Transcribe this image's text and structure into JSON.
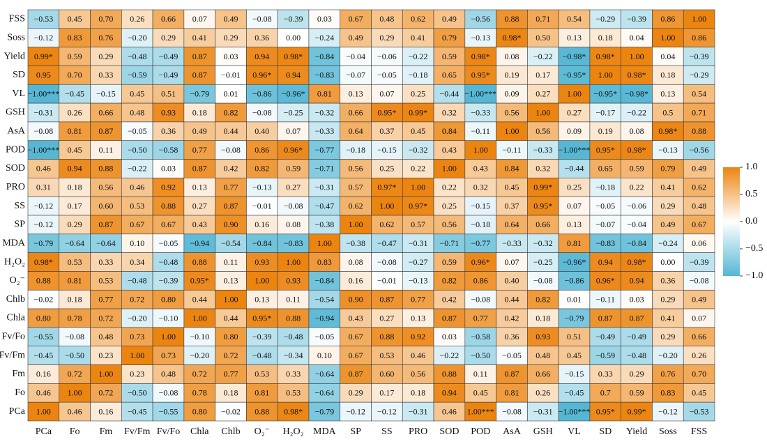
{
  "chart_data": {
    "type": "heatmap",
    "x_categories": [
      "PCa",
      "Fo",
      "Fm",
      "Fv/Fm",
      "Fv/Fo",
      "Chla",
      "Chlb",
      "O₂⁻",
      "H₂O₂",
      "MDA",
      "SP",
      "SS",
      "PRO",
      "SOD",
      "POD",
      "AsA",
      "GSH",
      "VL",
      "SD",
      "Yield",
      "Soss",
      "FSS"
    ],
    "y_categories": [
      "FSS",
      "Soss",
      "Yield",
      "SD",
      "VL",
      "GSH",
      "AsA",
      "POD",
      "SOD",
      "PRO",
      "SS",
      "SP",
      "MDA",
      "H₂O₂",
      "O₂⁻",
      "Chlb",
      "Chla",
      "Fv/Fo",
      "Fv/Fm",
      "Fm",
      "Fo",
      "PCa"
    ],
    "values": [
      [
        -0.53,
        0.45,
        0.7,
        0.26,
        0.66,
        0.07,
        0.49,
        -0.08,
        -0.39,
        0.03,
        0.67,
        0.48,
        0.62,
        0.49,
        -0.56,
        0.88,
        0.71,
        0.54,
        -0.29,
        -0.39,
        0.86,
        1.0
      ],
      [
        -0.12,
        0.83,
        0.76,
        -0.2,
        0.29,
        0.41,
        0.29,
        0.36,
        0.0,
        -0.24,
        0.49,
        0.29,
        0.41,
        0.79,
        -0.13,
        0.98,
        0.5,
        0.13,
        0.18,
        0.04,
        1.0,
        0.86
      ],
      [
        0.99,
        0.59,
        0.29,
        -0.48,
        -0.49,
        0.87,
        0.03,
        0.94,
        0.98,
        -0.84,
        -0.04,
        -0.06,
        -0.22,
        0.59,
        0.98,
        0.08,
        -0.22,
        -0.98,
        0.98,
        1.0,
        0.04,
        -0.39
      ],
      [
        0.95,
        0.7,
        0.33,
        -0.59,
        -0.49,
        0.87,
        -0.01,
        0.96,
        0.94,
        -0.83,
        -0.07,
        -0.05,
        -0.18,
        0.65,
        0.95,
        0.19,
        0.17,
        -0.95,
        1.0,
        0.98,
        0.18,
        -0.29
      ],
      [
        -1.0,
        -0.45,
        -0.15,
        0.45,
        0.51,
        -0.79,
        0.01,
        -0.86,
        -0.96,
        0.81,
        0.13,
        0.07,
        0.25,
        -0.44,
        -1.0,
        0.09,
        0.27,
        1.0,
        -0.95,
        -0.98,
        0.13,
        0.54
      ],
      [
        -0.31,
        0.26,
        0.66,
        0.48,
        0.93,
        0.18,
        0.82,
        -0.08,
        -0.25,
        -0.32,
        0.66,
        0.95,
        0.99,
        0.32,
        -0.33,
        0.56,
        1.0,
        0.27,
        -0.17,
        -0.22,
        0.5,
        0.71
      ],
      [
        -0.08,
        0.81,
        0.87,
        -0.05,
        0.36,
        0.49,
        0.44,
        0.4,
        0.07,
        -0.33,
        0.64,
        0.37,
        0.45,
        0.84,
        -0.11,
        1.0,
        0.56,
        0.09,
        0.19,
        0.08,
        0.98,
        0.88
      ],
      [
        -1.0,
        0.45,
        0.11,
        -0.5,
        -0.58,
        0.77,
        -0.08,
        0.86,
        0.96,
        -0.77,
        -0.18,
        -0.15,
        -0.32,
        0.43,
        1.0,
        -0.11,
        -0.33,
        -1.0,
        0.95,
        0.98,
        -0.13,
        -0.56
      ],
      [
        0.46,
        0.94,
        0.88,
        -0.22,
        0.03,
        0.87,
        0.42,
        0.82,
        0.59,
        -0.71,
        0.56,
        0.25,
        0.22,
        1.0,
        0.43,
        0.84,
        0.32,
        -0.44,
        0.65,
        0.59,
        0.79,
        0.49
      ],
      [
        0.31,
        0.18,
        0.56,
        0.46,
        0.92,
        0.13,
        0.77,
        -0.13,
        0.27,
        -0.31,
        0.57,
        0.97,
        1.0,
        0.22,
        0.32,
        0.45,
        0.99,
        0.25,
        -0.18,
        0.22,
        0.41,
        0.62
      ],
      [
        -0.12,
        0.17,
        0.6,
        0.53,
        0.88,
        0.27,
        0.87,
        -0.01,
        -0.08,
        -0.47,
        0.62,
        1.0,
        0.97,
        0.25,
        -0.15,
        0.37,
        0.95,
        0.07,
        -0.05,
        -0.06,
        0.29,
        0.48
      ],
      [
        -0.12,
        0.29,
        0.87,
        0.67,
        0.67,
        0.43,
        0.9,
        0.16,
        0.08,
        -0.38,
        1.0,
        0.62,
        0.57,
        0.56,
        -0.18,
        0.64,
        0.66,
        0.13,
        -0.07,
        -0.04,
        0.49,
        0.67
      ],
      [
        -0.79,
        -0.64,
        -0.64,
        0.1,
        -0.05,
        -0.94,
        -0.54,
        -0.84,
        -0.83,
        1.0,
        -0.38,
        -0.47,
        -0.31,
        -0.71,
        -0.77,
        -0.33,
        -0.32,
        0.81,
        -0.83,
        -0.84,
        -0.24,
        0.06
      ],
      [
        0.98,
        0.53,
        0.33,
        0.34,
        -0.48,
        0.88,
        0.11,
        0.93,
        1.0,
        0.83,
        0.08,
        -0.08,
        -0.27,
        0.59,
        0.96,
        0.07,
        -0.25,
        -0.96,
        0.94,
        0.98,
        0.0,
        -0.39
      ],
      [
        0.88,
        0.81,
        0.53,
        -0.48,
        -0.39,
        0.95,
        0.13,
        1.0,
        0.93,
        -0.84,
        0.16,
        -0.01,
        -0.13,
        0.82,
        0.86,
        0.4,
        -0.08,
        -0.86,
        0.96,
        0.94,
        0.36,
        -0.08
      ],
      [
        -0.02,
        0.18,
        0.77,
        0.72,
        0.8,
        0.44,
        1.0,
        0.13,
        0.11,
        -0.54,
        0.9,
        0.87,
        0.77,
        0.42,
        -0.08,
        0.44,
        0.82,
        0.01,
        -0.11,
        0.03,
        0.29,
        0.49
      ],
      [
        0.8,
        0.78,
        0.72,
        -0.2,
        -0.1,
        1.0,
        0.44,
        0.95,
        0.88,
        -0.94,
        0.43,
        0.27,
        0.13,
        0.87,
        0.77,
        0.42,
        0.18,
        -0.79,
        0.87,
        0.87,
        0.41,
        0.07
      ],
      [
        -0.55,
        -0.08,
        0.48,
        0.73,
        1.0,
        -0.1,
        0.8,
        -0.39,
        -0.48,
        -0.05,
        0.67,
        0.88,
        0.92,
        0.03,
        -0.58,
        0.36,
        0.93,
        0.51,
        -0.49,
        -0.49,
        0.29,
        0.66
      ],
      [
        -0.45,
        -0.5,
        0.23,
        1.0,
        0.73,
        -0.2,
        0.72,
        -0.48,
        -0.34,
        0.1,
        0.67,
        0.53,
        0.46,
        -0.22,
        -0.5,
        -0.05,
        0.48,
        0.45,
        -0.59,
        -0.48,
        -0.2,
        0.26
      ],
      [
        0.16,
        0.72,
        1.0,
        0.23,
        0.48,
        0.72,
        0.77,
        0.53,
        0.33,
        -0.64,
        0.87,
        0.6,
        0.56,
        0.88,
        0.11,
        0.87,
        0.66,
        -0.15,
        0.33,
        0.29,
        0.76,
        0.7
      ],
      [
        0.46,
        1.0,
        0.72,
        -0.5,
        -0.08,
        0.78,
        0.18,
        0.81,
        0.53,
        -0.64,
        0.29,
        0.17,
        0.18,
        0.94,
        0.45,
        0.81,
        0.26,
        -0.45,
        0.7,
        0.59,
        0.83,
        0.45
      ],
      [
        1.0,
        0.46,
        0.16,
        -0.45,
        -0.55,
        0.8,
        -0.02,
        0.88,
        0.98,
        -0.79,
        -0.12,
        -0.12,
        -0.31,
        0.46,
        1.0,
        -0.08,
        -0.31,
        -1.0,
        0.95,
        0.99,
        -0.12,
        -0.53
      ]
    ],
    "value_labels": [
      [
        "−0.53",
        "0.45",
        "0.70",
        "0.26",
        "0.66",
        "0.07",
        "0.49",
        "−0.08",
        "−0.39",
        "0.03",
        "0.67",
        "0.48",
        "0.62",
        "0.49",
        "−0.56",
        "0.88",
        "0.71",
        "0.54",
        "−0.29",
        "−0.39",
        "0.86",
        "1.00"
      ],
      [
        "−0.12",
        "0.83",
        "0.76",
        "−0.20",
        "0.29",
        "0.41",
        "0.29",
        "0.36",
        "0.00",
        "−0.24",
        "0.49",
        "0.29",
        "0.41",
        "0.79",
        "−0.13",
        "0.98*",
        "0.50",
        "0.13",
        "0.18",
        "0.04",
        "1.00",
        "0.86"
      ],
      [
        "0.99*",
        "0.59",
        "0.29",
        "−0.48",
        "−0.49",
        "0.87",
        "0.03",
        "0.94",
        "0.98*",
        "−0.84",
        "−0.04",
        "−0.06",
        "−0.22",
        "0.59",
        "0.98*",
        "0.08",
        "−0.22",
        "−0.98*",
        "0.98*",
        "1.00",
        "0.04",
        "−0.39"
      ],
      [
        "0.95",
        "0.70",
        "0.33",
        "−0.59",
        "−0.49",
        "0.87",
        "−0.01",
        "0.96*",
        "0.94",
        "−0.83",
        "−0.07",
        "−0.05",
        "−0.18",
        "0.65",
        "0.95*",
        "0.19",
        "0.17",
        "−0.95*",
        "1.00",
        "0.98*",
        "0.18",
        "−0.29"
      ],
      [
        "−1.00***",
        "−0.45",
        "−0.15",
        "0.45",
        "0.51",
        "−0.79",
        "0.01",
        "−0.86",
        "−0.96*",
        "0.81",
        "0.13",
        "0.07",
        "0.25",
        "−0.44",
        "−1.00***",
        "0.09",
        "0.27",
        "1.00",
        "−0.95*",
        "−0.98*",
        "0.13",
        "0.54"
      ],
      [
        "−0.31",
        "0.26",
        "0.66",
        "0.48",
        "0.93",
        "0.18",
        "0.82",
        "−0.08",
        "−0.25",
        "−0.32",
        "0.66",
        "0.95*",
        "0.99*",
        "0.32",
        "−0.33",
        "0.56",
        "1.00",
        "0.27",
        "−0.17",
        "−0.22",
        "0.5",
        "0.71"
      ],
      [
        "−0.08",
        "0.81",
        "0.87",
        "−0.05",
        "0.36",
        "0.49",
        "0.44",
        "0.40",
        "0.07",
        "−0.33",
        "0.64",
        "0.37",
        "0.45",
        "0.84",
        "−0.11",
        "1.00",
        "0.56",
        "0.09",
        "0.19",
        "0.08",
        "0.98*",
        "0.88"
      ],
      [
        "−1.00***",
        "0.45",
        "0.11",
        "−0.50",
        "−0.58",
        "0.77",
        "−0.08",
        "0.86",
        "0.96*",
        "−0.77",
        "−0.18",
        "−0.15",
        "−0.32",
        "0.43",
        "1.00",
        "−0.11",
        "−0.33",
        "−1.00***",
        "0.95*",
        "0.98*",
        "−0.13",
        "−0.56"
      ],
      [
        "0.46",
        "0.94",
        "0.88",
        "−0.22",
        "0.03",
        "0.87",
        "0.42",
        "0.82",
        "0.59",
        "−0.71",
        "0.56",
        "0.25",
        "0.22",
        "1.00",
        "0.43",
        "0.84",
        "0.32",
        "−0.44",
        "0.65",
        "0.59",
        "0.79",
        "0.49"
      ],
      [
        "0.31",
        "0.18",
        "0.56",
        "0.46",
        "0.92",
        "0.13",
        "0.77",
        "−0.13",
        "0.27",
        "−0.31",
        "0.57",
        "0.97*",
        "1.00",
        "0.22",
        "0.32",
        "0.45",
        "0.99*",
        "0.25",
        "−0.18",
        "0.22",
        "0.41",
        "0.62"
      ],
      [
        "−0.12",
        "0.17",
        "0.60",
        "0.53",
        "0.88",
        "0.27",
        "0.87",
        "−0.01",
        "−0.08",
        "−0.47",
        "0.62",
        "1.00",
        "0.97*",
        "0.25",
        "−0.15",
        "0.37",
        "0.95*",
        "0.07",
        "−0.05",
        "−0.06",
        "0.29",
        "0.48"
      ],
      [
        "−0.12",
        "0.29",
        "0.87",
        "0.67",
        "0.67",
        "0.43",
        "0.90",
        "0.16",
        "0.08",
        "−0.38",
        "1.00",
        "0.62",
        "0.57",
        "0.56",
        "−0.18",
        "0.64",
        "0.66",
        "0.13",
        "−0.07",
        "−0.04",
        "0.49",
        "0.67"
      ],
      [
        "−0.79",
        "−0.64",
        "−0.64",
        "0.10",
        "−0.05",
        "−0.94",
        "−0.54",
        "−0.84",
        "−0.83",
        "1.00",
        "−0.38",
        "−0.47",
        "−0.31",
        "−0.71",
        "−0.77",
        "−0.33",
        "−0.32",
        "0.81",
        "−0.83",
        "−0.84",
        "−0.24",
        "0.06"
      ],
      [
        "0.98*",
        "0.53",
        "0.33",
        "0.34",
        "−0.48",
        "0.88",
        "0.11",
        "0.93",
        "1.00",
        "0.83",
        "0.08",
        "−0.08",
        "−0.27",
        "0.59",
        "0.96*",
        "0.07",
        "−0.25",
        "−0.96*",
        "0.94",
        "0.98*",
        "0.00",
        "−0.39"
      ],
      [
        "0.88",
        "0.81",
        "0.53",
        "−0.48",
        "−0.39",
        "0.95*",
        "0.13",
        "1.00",
        "0.93",
        "−0.84",
        "0.16",
        "−0.01",
        "−0.13",
        "0.82",
        "0.86",
        "0.40",
        "−0.08",
        "−0.86",
        "0.96*",
        "0.94",
        "0.36",
        "−0.08"
      ],
      [
        "−0.02",
        "0.18",
        "0.77",
        "0.72",
        "0.80",
        "0.44",
        "1.00",
        "0.13",
        "0.11",
        "−0.54",
        "0.90",
        "0.87",
        "0.77",
        "0.42",
        "−0.08",
        "0.44",
        "0.82",
        "0.01",
        "−0.11",
        "0.03",
        "0.29",
        "0.49"
      ],
      [
        "0.80",
        "0.78",
        "0.72",
        "−0.20",
        "−0.10",
        "1.00",
        "0.44",
        "0.95*",
        "0.88",
        "−0.94",
        "0.43",
        "0.27",
        "0.13",
        "0.87",
        "0.77",
        "0.42",
        "0.18",
        "−0.79",
        "0.87",
        "0.87",
        "0.41",
        "0.07"
      ],
      [
        "−0.55",
        "−0.08",
        "0.48",
        "0.73",
        "1.00",
        "−0.10",
        "0.80",
        "−0.39",
        "−0.48",
        "−0.05",
        "0.67",
        "0.88",
        "0.92",
        "0.03",
        "−0.58",
        "0.36",
        "0.93",
        "0.51",
        "−0.49",
        "−0.49",
        "0.29",
        "0.66"
      ],
      [
        "−0.45",
        "−0.50",
        "0.23",
        "1.00",
        "0.73",
        "−0.20",
        "0.72",
        "−0.48",
        "−0.34",
        "0.10",
        "0.67",
        "0.53",
        "0.46",
        "−0.22",
        "−0.50",
        "−0.05",
        "0.48",
        "0.45",
        "−0.59",
        "−0.48",
        "−0.20",
        "0.26"
      ],
      [
        "0.16",
        "0.72",
        "1.00",
        "0.23",
        "0.48",
        "0.72",
        "0.77",
        "0.53",
        "0.33",
        "−0.64",
        "0.87",
        "0.60",
        "0.56",
        "0.88",
        "0.11",
        "0.87",
        "0.66",
        "−0.15",
        "0.33",
        "0.29",
        "0.76",
        "0.70"
      ],
      [
        "0.46",
        "1.00",
        "0.72",
        "−0.50",
        "−0.08",
        "0.78",
        "0.18",
        "0.81",
        "0.53",
        "−0.64",
        "0.29",
        "0.17",
        "0.18",
        "0.94",
        "0.45",
        "0.81",
        "0.26",
        "−0.45",
        "0.7",
        "0.59",
        "0.83",
        "0.45"
      ],
      [
        "1.00",
        "0.46",
        "0.16",
        "−0.45",
        "−0.55",
        "0.80",
        "−0.02",
        "0.88",
        "0.98*",
        "−0.79",
        "−0.12",
        "−0.12",
        "−0.31",
        "0.46",
        "1.00***",
        "−0.08",
        "−0.31",
        "−1.00***",
        "0.95*",
        "0.99*",
        "−0.12",
        "−0.53"
      ]
    ],
    "colormap": [
      "#55b7d4",
      "#ffffff",
      "#ec8410"
    ],
    "clim": [
      -1,
      1
    ],
    "cticks": [
      {
        "value": 1,
        "label": "1.0"
      },
      0.5,
      {
        "value": 0,
        "label": "0.0"
      },
      {
        "value": -0.5,
        "label": "−0.5"
      },
      {
        "value": -1,
        "label": "−1.0"
      }
    ]
  }
}
